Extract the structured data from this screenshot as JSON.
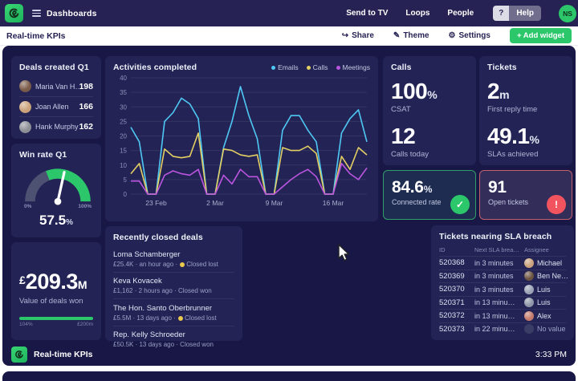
{
  "topbar": {
    "brand": "Dashboards",
    "send_to_tv": "Send to TV",
    "loops": "Loops",
    "people": "People",
    "help_q": "?",
    "help": "Help",
    "avatar_initials": "NS"
  },
  "toolbar": {
    "title": "Real-time KPIs",
    "share": "Share",
    "theme": "Theme",
    "settings": "Settings",
    "add_widget": "+ Add widget"
  },
  "widgets": {
    "deals_created": {
      "title": "Deals created Q1",
      "rows": [
        {
          "name": "Maria Van H…",
          "value": "198",
          "avatar": "#7a5a48"
        },
        {
          "name": "Joan Allen",
          "value": "166",
          "avatar": "#caa27a"
        },
        {
          "name": "Hank Murphy",
          "value": "162",
          "avatar": "#8d8f96"
        }
      ]
    },
    "win_rate": {
      "title": "Win rate Q1",
      "min_label": "0%",
      "max_label": "100%",
      "value": "57.5",
      "unit": "%"
    },
    "deals_value": {
      "currency": "£",
      "value": "209.3",
      "suffix": "M",
      "label": "Value of deals won",
      "progress_left": "104%",
      "progress_right": "£200m"
    },
    "calls": {
      "title": "Calls",
      "stat1_value": "100",
      "stat1_unit": "%",
      "stat1_label": "CSAT",
      "stat2_value": "12",
      "stat2_unit": "",
      "stat2_label": "Calls today"
    },
    "tickets": {
      "title": "Tickets",
      "stat1_value": "2",
      "stat1_unit": "m",
      "stat1_label": "First reply time",
      "stat2_value": "49.1",
      "stat2_unit": "%",
      "stat2_label": "SLAs achieved"
    },
    "connected_rate": {
      "value": "84.6",
      "unit": "%",
      "label": "Connected rate",
      "badge": "✓"
    },
    "open_tickets": {
      "value": "91",
      "label": "Open tickets",
      "badge": "!"
    },
    "recent_deals": {
      "title": "Recently closed deals",
      "items": [
        {
          "name": "Loma Schamberger",
          "amount": "£25.4K",
          "time": "an hour ago",
          "status": "Closed lost",
          "has_dot": true
        },
        {
          "name": "Keva Kovacek",
          "amount": "£1,162",
          "time": "2 hours ago",
          "status": "Closed won",
          "has_dot": false
        },
        {
          "name": "The Hon. Santo Oberbrunner",
          "amount": "£5.5M",
          "time": "13 days ago",
          "status": "Closed lost",
          "has_dot": true
        },
        {
          "name": "Rep. Kelly Schroeder",
          "amount": "£50.5K",
          "time": "13 days ago",
          "status": "Closed won",
          "has_dot": false
        }
      ]
    },
    "sla_table": {
      "title": "Tickets nearing SLA breach",
      "columns": [
        "ID",
        "Next SLA brea…",
        "Assignee"
      ],
      "rows": [
        {
          "id": "520368",
          "sla": "in 3 minutes",
          "assignee": "Michael",
          "avatar": "#c9a27b"
        },
        {
          "id": "520369",
          "sla": "in 3 minutes",
          "assignee": "Ben Ne…",
          "avatar": "#6b5340"
        },
        {
          "id": "520370",
          "sla": "in 3 minutes",
          "assignee": "Luis",
          "avatar": "#9aa3b5"
        },
        {
          "id": "520371",
          "sla": "in 13 minu…",
          "assignee": "Luis",
          "avatar": "#8e97a9"
        },
        {
          "id": "520372",
          "sla": "in 13 minu…",
          "assignee": "Alex",
          "avatar": "#c47a6b"
        },
        {
          "id": "520373",
          "sla": "in 22 minu…",
          "assignee": "No value",
          "avatar": ""
        }
      ]
    }
  },
  "footer": {
    "title": "Real-time KPIs",
    "time": "3:33 PM"
  },
  "colors": {
    "accent_green": "#2bc76a",
    "alert_red": "#f2545f",
    "topbar_bg": "#262253",
    "dashboard_bg": "#181746",
    "widget_bg": "#232455",
    "gauge_gray": "#4d5273"
  },
  "chart_data": {
    "type": "line",
    "title": "Activities completed",
    "xlabel": "",
    "ylabel": "",
    "ylim": [
      0,
      40
    ],
    "y_ticks": [
      0,
      5,
      10,
      15,
      20,
      25,
      30,
      35,
      40
    ],
    "grid": true,
    "legend_position": "top-right",
    "x_tick_indices": [
      3,
      10,
      17,
      24
    ],
    "x_tick_labels": [
      "23 Feb",
      "2 Mar",
      "9 Mar",
      "16 Mar"
    ],
    "series": [
      {
        "name": "Emails",
        "color": "#4fc8f4",
        "values": [
          23,
          18,
          0,
          0,
          25,
          28,
          33,
          31,
          26,
          0,
          0,
          16,
          25,
          37,
          27,
          19,
          0,
          0,
          22,
          27,
          27,
          22,
          18,
          0,
          0,
          21,
          26,
          29,
          18
        ]
      },
      {
        "name": "Calls",
        "color": "#e3cf63",
        "values": [
          7,
          10.5,
          0,
          0,
          15.5,
          13,
          12.5,
          13,
          21,
          0,
          0,
          15.5,
          15,
          13.5,
          13,
          13.5,
          0,
          0,
          16,
          15,
          15,
          16.5,
          14,
          0,
          0,
          13,
          8.5,
          16,
          13.5
        ]
      },
      {
        "name": "Meetings",
        "color": "#bb55e0",
        "values": [
          4.5,
          4.5,
          0,
          0,
          6.5,
          8,
          7,
          6.5,
          8.5,
          0,
          0,
          6.5,
          3.5,
          8.5,
          6,
          6,
          0,
          0,
          2.5,
          5,
          7,
          8.5,
          6,
          0,
          0,
          10.5,
          7,
          5,
          9
        ]
      }
    ]
  }
}
